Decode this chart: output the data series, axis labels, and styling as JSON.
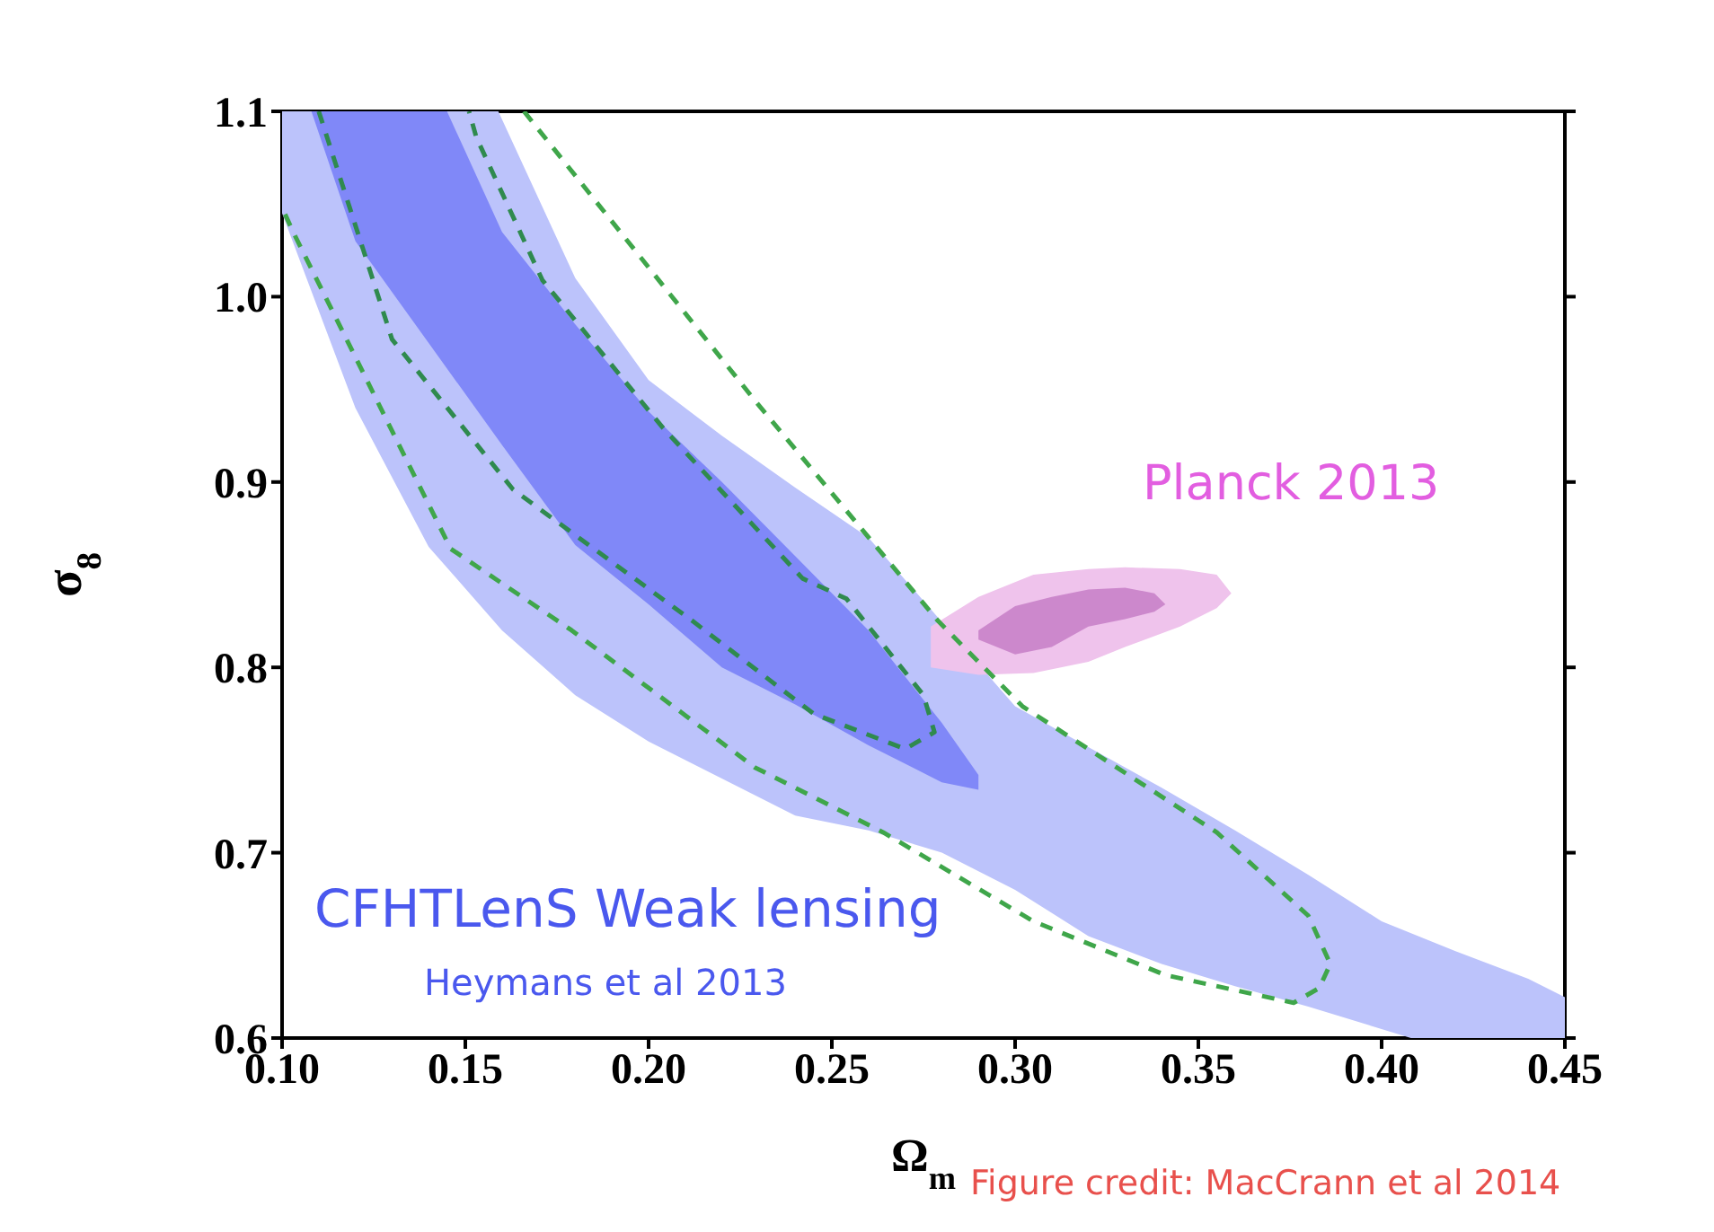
{
  "chart_data": {
    "type": "area",
    "xlabel": "Ω$_{m}$",
    "ylabel": "σ$_{8}$",
    "xlim": [
      0.1,
      0.45
    ],
    "ylim": [
      0.6,
      1.1
    ],
    "xticks": [
      {
        "value": 0.1,
        "label": "0.10"
      },
      0.15,
      {
        "value": 0.2,
        "label": "0.20"
      },
      0.25,
      {
        "value": 0.3,
        "label": "0.30"
      },
      0.35,
      {
        "value": 0.4,
        "label": "0.40"
      },
      0.45
    ],
    "yticks": [
      0.6,
      0.7,
      0.8,
      0.9,
      {
        "value": 1.0,
        "label": "1.0"
      },
      1.1
    ],
    "grid": false,
    "legend": false,
    "annotations": [
      "Heymans et al 2013",
      "Figure credit: MacCrann et al 2014"
    ],
    "series": [
      {
        "name": "CFHTLenS Weak lensing",
        "color": "#bcc3fb",
        "x": [
          0.1,
          0.159,
          0.18,
          0.2,
          0.22,
          0.24,
          0.26,
          0.3,
          0.32,
          0.34,
          0.36,
          0.38,
          0.4,
          0.42,
          0.44,
          0.45,
          0.45,
          0.408,
          0.38,
          0.36,
          0.34,
          0.32,
          0.3,
          0.28,
          0.26,
          0.24,
          0.22,
          0.2,
          0.18,
          0.16,
          0.14,
          0.12,
          0.1
        ],
        "values": [
          1.1,
          1.1,
          1.01,
          0.955,
          0.925,
          0.897,
          0.87,
          0.779,
          0.757,
          0.735,
          0.712,
          0.688,
          0.663,
          0.647,
          0.632,
          0.622,
          0.6,
          0.6,
          0.617,
          0.628,
          0.64,
          0.655,
          0.68,
          0.7,
          0.712,
          0.72,
          0.74,
          0.76,
          0.785,
          0.82,
          0.865,
          0.94,
          1.045
        ]
      },
      {
        "color": "#8088f8",
        "x": [
          0.108,
          0.145,
          0.16,
          0.18,
          0.2,
          0.22,
          0.24,
          0.26,
          0.28,
          0.29,
          0.29,
          0.28,
          0.26,
          0.24,
          0.22,
          0.2,
          0.18,
          0.16,
          0.14,
          0.12
        ],
        "values": [
          1.1,
          1.1,
          1.035,
          0.985,
          0.938,
          0.9,
          0.86,
          0.82,
          0.77,
          0.742,
          0.734,
          0.738,
          0.758,
          0.78,
          0.8,
          0.834,
          0.866,
          0.92,
          0.975,
          1.03
        ]
      },
      {
        "name": "Planck 2013",
        "color": "#efc3ec",
        "x": [
          0.277,
          0.29,
          0.305,
          0.32,
          0.33,
          0.345,
          0.355,
          0.359,
          0.355,
          0.345,
          0.33,
          0.32,
          0.305,
          0.29,
          0.277
        ],
        "values": [
          0.822,
          0.838,
          0.85,
          0.853,
          0.854,
          0.853,
          0.85,
          0.84,
          0.832,
          0.822,
          0.811,
          0.803,
          0.797,
          0.796,
          0.8
        ]
      },
      {
        "color": "#cc88cc",
        "x": [
          0.29,
          0.3,
          0.31,
          0.32,
          0.33,
          0.338,
          0.341,
          0.338,
          0.33,
          0.32,
          0.31,
          0.3,
          0.29
        ],
        "values": [
          0.82,
          0.833,
          0.838,
          0.842,
          0.843,
          0.84,
          0.834,
          0.83,
          0.826,
          0.822,
          0.811,
          0.807,
          0.815
        ]
      },
      {
        "type": "line",
        "color": "#3fa64a",
        "line_style": "dashed",
        "x": [
          0.166,
          0.229,
          0.279,
          0.302,
          0.355,
          0.38,
          0.386,
          0.383,
          0.376,
          0.341,
          0.305,
          0.264,
          0.229,
          0.179,
          0.146,
          0.103,
          0.1
        ],
        "values": [
          1.1,
          0.944,
          0.825,
          0.779,
          0.711,
          0.666,
          0.64,
          0.627,
          0.619,
          0.634,
          0.663,
          0.711,
          0.746,
          0.82,
          0.864,
          1.035,
          1.048
        ]
      },
      {
        "type": "line",
        "color": "#2f8a4e",
        "line_style": "dashed",
        "x": [
          0.11,
          0.13,
          0.163,
          0.212,
          0.245,
          0.27,
          0.278,
          0.275,
          0.254,
          0.242,
          0.204,
          0.171,
          0.153,
          0.151
        ],
        "values": [
          1.1,
          0.977,
          0.896,
          0.825,
          0.775,
          0.756,
          0.765,
          0.785,
          0.837,
          0.848,
          0.929,
          1.009,
          1.086,
          1.1
        ]
      }
    ]
  }
}
